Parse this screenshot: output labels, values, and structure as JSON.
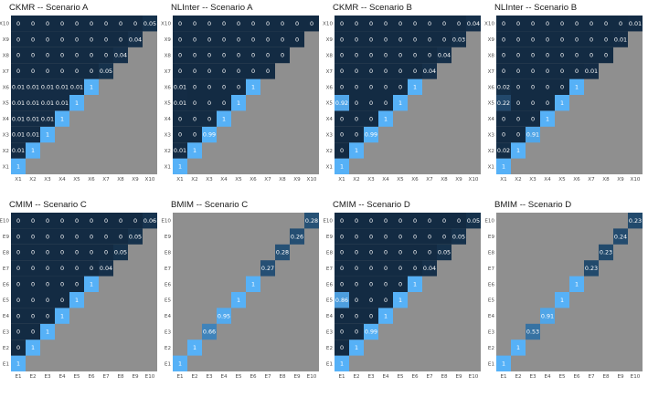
{
  "chart_data": [
    {
      "type": "heatmap",
      "title": "CKMR -- Scenario A",
      "x_categories": [
        "X1",
        "X2",
        "X3",
        "X4",
        "X5",
        "X6",
        "X7",
        "X8",
        "X9",
        "X10"
      ],
      "y_categories": [
        "X1",
        "X2",
        "X3",
        "X4",
        "X5",
        "X6",
        "X7",
        "X8",
        "X9",
        "X10"
      ],
      "rows": [
        [
          "1"
        ],
        [
          "0.01",
          "1"
        ],
        [
          "0.01",
          "0.01",
          "1"
        ],
        [
          "0.01",
          "0.01",
          "0.01",
          "1"
        ],
        [
          "0.01",
          "0.01",
          "0.01",
          "0.01",
          "1"
        ],
        [
          "0.01",
          "0.01",
          "0.01",
          "0.01",
          "0.01",
          "1"
        ],
        [
          "0",
          "0",
          "0",
          "0",
          "0",
          "0",
          "0.05"
        ],
        [
          "0",
          "0",
          "0",
          "0",
          "0",
          "0",
          "0",
          "0.04"
        ],
        [
          "0",
          "0",
          "0",
          "0",
          "0",
          "0",
          "0",
          "0",
          "0.04"
        ],
        [
          "0",
          "0",
          "0",
          "0",
          "0",
          "0",
          "0",
          "0",
          "0",
          "0.05"
        ]
      ]
    },
    {
      "type": "heatmap",
      "title": "NLInter -- Scenario A",
      "x_categories": [
        "X1",
        "X2",
        "X3",
        "X4",
        "X5",
        "X6",
        "X7",
        "X8",
        "X9",
        "X10"
      ],
      "y_categories": [
        "X1",
        "X2",
        "X3",
        "X4",
        "X5",
        "X6",
        "X7",
        "X8",
        "X9",
        "X10"
      ],
      "rows": [
        [
          "1"
        ],
        [
          "0.01",
          "1"
        ],
        [
          "0",
          "0",
          "0.99"
        ],
        [
          "0",
          "0",
          "0",
          "1"
        ],
        [
          "0.01",
          "0",
          "0",
          "0",
          "1"
        ],
        [
          "0.01",
          "0",
          "0",
          "0",
          "0",
          "1"
        ],
        [
          "0",
          "0",
          "0",
          "0",
          "0",
          "0",
          "0"
        ],
        [
          "0",
          "0",
          "0",
          "0",
          "0",
          "0",
          "0",
          "0"
        ],
        [
          "0",
          "0",
          "0",
          "0",
          "0",
          "0",
          "0",
          "0",
          "0"
        ],
        [
          "0",
          "0",
          "0",
          "0",
          "0",
          "0",
          "0",
          "0",
          "0",
          "0"
        ]
      ]
    },
    {
      "type": "heatmap",
      "title": "CKMR -- Scenario B",
      "x_categories": [
        "X1",
        "X2",
        "X3",
        "X4",
        "X5",
        "X6",
        "X7",
        "X8",
        "X9",
        "X10"
      ],
      "y_categories": [
        "X1",
        "X2",
        "X3",
        "X4",
        "X5",
        "X6",
        "X7",
        "X8",
        "X9",
        "X10"
      ],
      "rows": [
        [
          "1"
        ],
        [
          "0",
          "1"
        ],
        [
          "0",
          "0",
          "0.99"
        ],
        [
          "0",
          "0",
          "0",
          "1"
        ],
        [
          "0.92",
          "0",
          "0",
          "0",
          "1"
        ],
        [
          "0",
          "0",
          "0",
          "0",
          "0",
          "1"
        ],
        [
          "0",
          "0",
          "0",
          "0",
          "0",
          "0",
          "0.04"
        ],
        [
          "0",
          "0",
          "0",
          "0",
          "0",
          "0",
          "0",
          "0.04"
        ],
        [
          "0",
          "0",
          "0",
          "0",
          "0",
          "0",
          "0",
          "0",
          "0.03"
        ],
        [
          "0",
          "0",
          "0",
          "0",
          "0",
          "0",
          "0",
          "0",
          "0",
          "0.04"
        ]
      ]
    },
    {
      "type": "heatmap",
      "title": "NLInter -- Scenario B",
      "x_categories": [
        "X1",
        "X2",
        "X3",
        "X4",
        "X5",
        "X6",
        "X7",
        "X8",
        "X9",
        "X10"
      ],
      "y_categories": [
        "X1",
        "X2",
        "X3",
        "X4",
        "X5",
        "X6",
        "X7",
        "X8",
        "X9",
        "X10"
      ],
      "rows": [
        [
          "1"
        ],
        [
          "0.02",
          "1"
        ],
        [
          "0",
          "0",
          "0.91"
        ],
        [
          "0",
          "0",
          "0",
          "1"
        ],
        [
          "0.22",
          "0",
          "0",
          "0",
          "1"
        ],
        [
          "0.02",
          "0",
          "0",
          "0",
          "0",
          "1"
        ],
        [
          "0",
          "0",
          "0",
          "0",
          "0",
          "0",
          "0.01"
        ],
        [
          "0",
          "0",
          "0",
          "0",
          "0",
          "0",
          "0",
          "0"
        ],
        [
          "0",
          "0",
          "0",
          "0",
          "0",
          "0",
          "0",
          "0",
          "0.01"
        ],
        [
          "0",
          "0",
          "0",
          "0",
          "0",
          "0",
          "0",
          "0",
          "0",
          "0.01"
        ]
      ]
    },
    {
      "type": "heatmap",
      "title": "CMIM -- Scenario C",
      "x_categories": [
        "E1",
        "E2",
        "E3",
        "E4",
        "E5",
        "E6",
        "E7",
        "E8",
        "E9",
        "E10"
      ],
      "y_categories": [
        "E1",
        "E2",
        "E3",
        "E4",
        "E5",
        "E6",
        "E7",
        "E8",
        "E9",
        "E10"
      ],
      "rows": [
        [
          "1"
        ],
        [
          "0",
          "1"
        ],
        [
          "0",
          "0",
          "1"
        ],
        [
          "0",
          "0",
          "0",
          "1"
        ],
        [
          "0",
          "0",
          "0",
          "0",
          "1"
        ],
        [
          "0",
          "0",
          "0",
          "0",
          "0",
          "1"
        ],
        [
          "0",
          "0",
          "0",
          "0",
          "0",
          "0",
          "0.04"
        ],
        [
          "0",
          "0",
          "0",
          "0",
          "0",
          "0",
          "0",
          "0.05"
        ],
        [
          "0",
          "0",
          "0",
          "0",
          "0",
          "0",
          "0",
          "0",
          "0.05"
        ],
        [
          "0",
          "0",
          "0",
          "0",
          "0",
          "0",
          "0",
          "0",
          "0",
          "0.06"
        ]
      ]
    },
    {
      "type": "heatmap",
      "title": "BMIM -- Scenario C",
      "x_categories": [
        "E1",
        "E2",
        "E3",
        "E4",
        "E5",
        "E6",
        "E7",
        "E8",
        "E9",
        "E10"
      ],
      "y_categories": [
        "E1",
        "E2",
        "E3",
        "E4",
        "E5",
        "E6",
        "E7",
        "E8",
        "E9",
        "E10"
      ],
      "rows": [
        [
          "1"
        ],
        [
          null,
          "1"
        ],
        [
          null,
          null,
          "0.66"
        ],
        [
          null,
          null,
          null,
          "0.95"
        ],
        [
          null,
          null,
          null,
          null,
          "1"
        ],
        [
          null,
          null,
          null,
          null,
          null,
          "1"
        ],
        [
          null,
          null,
          null,
          null,
          null,
          null,
          "0.27"
        ],
        [
          null,
          null,
          null,
          null,
          null,
          null,
          null,
          "0.28"
        ],
        [
          null,
          null,
          null,
          null,
          null,
          null,
          null,
          null,
          "0.26"
        ],
        [
          null,
          null,
          null,
          null,
          null,
          null,
          null,
          null,
          null,
          "0.28"
        ]
      ]
    },
    {
      "type": "heatmap",
      "title": "CMIM -- Scenario D",
      "x_categories": [
        "E1",
        "E2",
        "E3",
        "E4",
        "E5",
        "E6",
        "E7",
        "E8",
        "E9",
        "E10"
      ],
      "y_categories": [
        "E1",
        "E2",
        "E3",
        "E4",
        "E5",
        "E6",
        "E7",
        "E8",
        "E9",
        "E10"
      ],
      "rows": [
        [
          "1"
        ],
        [
          "0",
          "1"
        ],
        [
          "0",
          "0",
          "0.99"
        ],
        [
          "0",
          "0",
          "0",
          "1"
        ],
        [
          "0.86",
          "0",
          "0",
          "0",
          "1"
        ],
        [
          "0",
          "0",
          "0",
          "0",
          "0",
          "1"
        ],
        [
          "0",
          "0",
          "0",
          "0",
          "0",
          "0",
          "0.04"
        ],
        [
          "0",
          "0",
          "0",
          "0",
          "0",
          "0",
          "0",
          "0.05"
        ],
        [
          "0",
          "0",
          "0",
          "0",
          "0",
          "0",
          "0",
          "0",
          "0.05"
        ],
        [
          "0",
          "0",
          "0",
          "0",
          "0",
          "0",
          "0",
          "0",
          "0",
          "0.05"
        ]
      ]
    },
    {
      "type": "heatmap",
      "title": "BMIM -- Scenario D",
      "x_categories": [
        "E1",
        "E2",
        "E3",
        "E4",
        "E5",
        "E6",
        "E7",
        "E8",
        "E9",
        "E10"
      ],
      "y_categories": [
        "E1",
        "E2",
        "E3",
        "E4",
        "E5",
        "E6",
        "E7",
        "E8",
        "E9",
        "E10"
      ],
      "rows": [
        [
          "1"
        ],
        [
          null,
          "1"
        ],
        [
          null,
          null,
          "0.53"
        ],
        [
          null,
          null,
          null,
          "0.91"
        ],
        [
          null,
          null,
          null,
          null,
          "1"
        ],
        [
          null,
          null,
          null,
          null,
          null,
          "1"
        ],
        [
          null,
          null,
          null,
          null,
          null,
          null,
          "0.23"
        ],
        [
          null,
          null,
          null,
          null,
          null,
          null,
          null,
          "0.23"
        ],
        [
          null,
          null,
          null,
          null,
          null,
          null,
          null,
          null,
          "0.24"
        ],
        [
          null,
          null,
          null,
          null,
          null,
          null,
          null,
          null,
          null,
          "0.23"
        ]
      ]
    }
  ],
  "colors": {
    "low": "#132b43",
    "high": "#56b1f7",
    "panel_background": "#8f8f8f",
    "cell_text": "#ffffff"
  }
}
